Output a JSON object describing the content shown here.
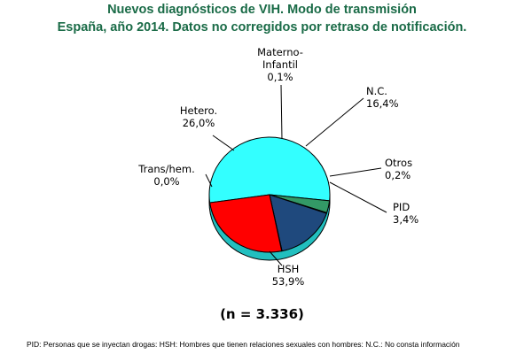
{
  "chart_data": {
    "type": "pie",
    "title": "Nuevos diagnósticos de VIH. Modo de transmisión",
    "subtitle": "España, año 2014. Datos no corregidos por retraso de notificación.",
    "slices": [
      {
        "name": "HSH",
        "value": 53.9,
        "label_lines": [
          "HSH",
          "53,9%"
        ],
        "color": "#33ffff"
      },
      {
        "name": "PID",
        "value": 3.4,
        "label_lines": [
          "PID",
          "3,4%"
        ],
        "color": "#339966"
      },
      {
        "name": "Otros",
        "value": 0.2,
        "label_lines": [
          "Otros",
          "0,2%"
        ],
        "color": "#999999"
      },
      {
        "name": "N.C.",
        "value": 16.4,
        "label_lines": [
          "N.C.",
          "16,4%"
        ],
        "color": "#1f497d"
      },
      {
        "name": "Materno-Infantil",
        "value": 0.1,
        "label_lines": [
          "Materno-",
          "Infantil",
          "0,1%"
        ],
        "color": "#ffff00"
      },
      {
        "name": "Hetero.",
        "value": 26.0,
        "label_lines": [
          "Hetero.",
          "26,0%"
        ],
        "color": "#ff0000"
      },
      {
        "name": "Trans/hem.",
        "value": 0.0,
        "label_lines": [
          "Trans/hem.",
          "0,0%"
        ],
        "color": "#ff66cc"
      }
    ],
    "n_label": "(n = 3.336)",
    "footnote": "PID: Personas que se inyectan drogas: HSH: Hombres que tienen relaciones sexuales con hombres: N.C.: No consta información"
  }
}
